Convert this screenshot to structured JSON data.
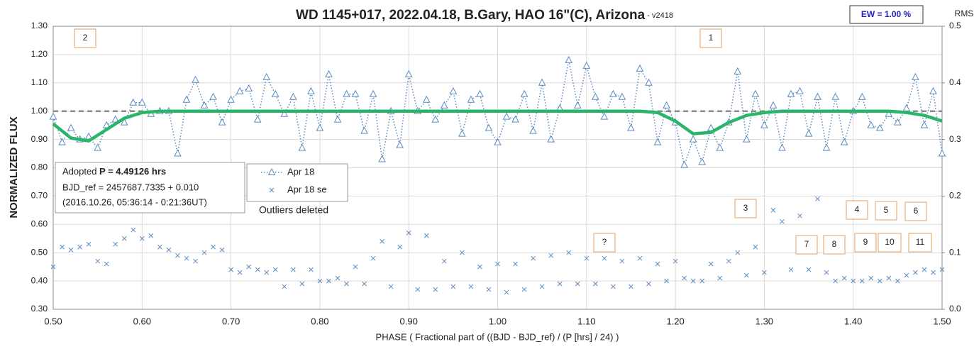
{
  "chart_data": {
    "type": "scatter",
    "title": "WD 1145+017, 2022.04.18, B.Gary, HAO 16\"(C), Arizona",
    "title_suffix": " - v2418",
    "ew_label": "EW = 1.00 %",
    "y2_label": "RMS i",
    "ylabel": "NORMALIZED FLUX",
    "xlabel": "PHASE ( Fractional part of ((BJD - BJD_ref) / (P [hrs] / 24) )",
    "info": [
      "Adopted ",
      "P = 4.49126 hrs",
      "BJD_ref = 2457687.7335 + 0.010",
      "(2016.10.26, 05:36:14 - 0:21:36UT)"
    ],
    "note": "Outliers deleted",
    "annotations": [
      "2",
      "1",
      "3",
      "4",
      "5",
      "6",
      "?",
      "7",
      "8",
      "9",
      "10",
      "11"
    ],
    "hline": 1,
    "grid": true,
    "xlim": [
      0.5,
      1.5
    ],
    "ylim": [
      0.3,
      1.3
    ],
    "y2lim": [
      0,
      0.5
    ],
    "xticks": [
      {
        "value": 0.5,
        "label": "0.50"
      },
      {
        "value": 0.6,
        "label": "0.60"
      },
      {
        "value": 0.7,
        "label": "0.70"
      },
      {
        "value": 0.8,
        "label": "0.80"
      },
      {
        "value": 0.9,
        "label": "0.90"
      },
      {
        "value": 1,
        "label": "1.00"
      },
      {
        "value": 1.1,
        "label": "1.10"
      },
      {
        "value": 1.2,
        "label": "1.20"
      },
      {
        "value": 1.3,
        "label": "1.30"
      },
      {
        "value": 1.4,
        "label": "1.40"
      },
      {
        "value": 1.5,
        "label": "1.50"
      }
    ],
    "yticks": [
      {
        "value": 0.3,
        "label": "0.30"
      },
      {
        "value": 0.4,
        "label": "0.40"
      },
      {
        "value": 0.5,
        "label": "0.50"
      },
      {
        "value": 0.6,
        "label": "0.60"
      },
      {
        "value": 0.7,
        "label": "0.70"
      },
      {
        "value": 0.8,
        "label": "0.80"
      },
      {
        "value": 0.9,
        "label": "0.90"
      },
      {
        "value": 1,
        "label": "1.00"
      },
      {
        "value": 1.1,
        "label": "1.10"
      },
      {
        "value": 1.2,
        "label": "1.20"
      },
      {
        "value": 1.3,
        "label": "1.30"
      }
    ],
    "y2ticks": [
      {
        "value": 0,
        "label": "0.0"
      },
      0.1,
      0.2,
      0.3,
      0.4,
      0.5
    ],
    "x": [
      0.5,
      0.51,
      0.52,
      0.53,
      0.54,
      0.55,
      0.56,
      0.57,
      0.58,
      0.59,
      0.6,
      0.61,
      0.62,
      0.63,
      0.64,
      0.65,
      0.66,
      0.67,
      0.68,
      0.69,
      0.7,
      0.71,
      0.72,
      0.73,
      0.74,
      0.75,
      0.76,
      0.77,
      0.78,
      0.79,
      0.8,
      0.81,
      0.82,
      0.83,
      0.84,
      0.85,
      0.86,
      0.87,
      0.88,
      0.89,
      0.9,
      0.91,
      0.92,
      0.93,
      0.94,
      0.95,
      0.96,
      0.97,
      0.98,
      0.99,
      1,
      1.01,
      1.02,
      1.03,
      1.04,
      1.05,
      1.06,
      1.07,
      1.08,
      1.09,
      1.1,
      1.11,
      1.12,
      1.13,
      1.14,
      1.15,
      1.16,
      1.17,
      1.18,
      1.19,
      1.2,
      1.21,
      1.22,
      1.23,
      1.24,
      1.25,
      1.26,
      1.27,
      1.28,
      1.29,
      1.3,
      1.31,
      1.32,
      1.33,
      1.34,
      1.35,
      1.36,
      1.37,
      1.38,
      1.39,
      1.4,
      1.41,
      1.42,
      1.43,
      1.44,
      1.45,
      1.46,
      1.47,
      1.48,
      1.49,
      1.5
    ],
    "series": [
      {
        "name": "Apr 18",
        "color": "#5b8bbf",
        "marker": "triangle",
        "values": [
          0.98,
          0.89,
          0.94,
          0.9,
          0.91,
          0.87,
          0.95,
          0.97,
          0.96,
          1.03,
          1.03,
          0.99,
          1,
          1,
          0.85,
          1.04,
          1.11,
          1.02,
          1.05,
          0.96,
          1.04,
          1.07,
          1.08,
          0.97,
          1.12,
          1.06,
          0.99,
          1.05,
          0.87,
          1.07,
          0.94,
          1.13,
          0.97,
          1.06,
          1.06,
          0.93,
          1.06,
          0.83,
          1,
          0.88,
          1.13,
          1,
          1.04,
          0.97,
          1.02,
          1.07,
          0.92,
          1.04,
          1.06,
          0.94,
          0.89,
          0.98,
          0.97,
          1.06,
          0.93,
          1.1,
          0.9,
          1.01,
          1.18,
          1.02,
          1.16,
          1.05,
          0.98,
          1.06,
          1.05,
          0.94,
          1.15,
          1.1,
          0.89,
          1.02,
          0.96,
          0.81,
          0.9,
          0.82,
          0.94,
          0.87,
          0.96,
          1.14,
          0.9,
          1.06,
          0.95,
          1.02,
          0.87,
          1.06,
          1.07,
          0.92,
          1.05,
          0.87,
          1.05,
          0.89,
          1,
          1.05,
          0.95,
          0.94,
          0.99,
          0.96,
          1.01,
          1.12,
          0.95,
          1.07,
          0.85
        ]
      },
      {
        "name": "Apr 18 se",
        "color": "#5b8bbf",
        "marker": "cross",
        "axis": "y2",
        "values": [
          0.075,
          0.11,
          0.105,
          0.11,
          0.115,
          0.085,
          0.08,
          0.115,
          0.125,
          0.14,
          0.125,
          0.13,
          0.11,
          0.105,
          0.095,
          0.09,
          0.085,
          0.1,
          0.11,
          0.105,
          0.07,
          0.065,
          0.075,
          0.07,
          0.065,
          0.07,
          0.04,
          0.07,
          0.045,
          0.07,
          0.05,
          0.05,
          0.055,
          0.045,
          0.075,
          0.045,
          0.09,
          0.12,
          0.04,
          0.11,
          0.135,
          0.035,
          0.13,
          0.035,
          0.085,
          0.04,
          0.1,
          0.04,
          0.075,
          0.035,
          0.08,
          0.03,
          0.08,
          0.035,
          0.09,
          0.04,
          0.095,
          0.045,
          0.1,
          0.045,
          0.09,
          0.045,
          0.09,
          0.04,
          0.085,
          0.04,
          0.09,
          0.045,
          0.08,
          0.05,
          0.085,
          0.055,
          0.05,
          0.05,
          0.08,
          0.055,
          0.085,
          0.1,
          0.06,
          0.11,
          0.065,
          0.175,
          0.155,
          0.07,
          0.165,
          0.07,
          0.195,
          0.065,
          0.05,
          0.055,
          0.05,
          0.05,
          0.055,
          0.05,
          0.055,
          0.05,
          0.06,
          0.065,
          0.07,
          0.065,
          0.07
        ]
      },
      {
        "color": "#2ab56a",
        "marker": "line",
        "x": [
          0.5,
          0.52,
          0.54,
          0.56,
          0.58,
          0.6,
          0.62,
          0.64,
          0.66,
          0.68,
          0.7,
          0.72,
          0.74,
          0.76,
          0.78,
          0.8,
          0.82,
          0.84,
          0.86,
          0.88,
          0.9,
          0.92,
          0.94,
          0.96,
          0.98,
          1,
          1.02,
          1.04,
          1.06,
          1.08,
          1.1,
          1.12,
          1.14,
          1.16,
          1.18,
          1.2,
          1.22,
          1.24,
          1.26,
          1.28,
          1.3,
          1.32,
          1.34,
          1.36,
          1.38,
          1.4,
          1.42,
          1.44,
          1.46,
          1.48,
          1.5
        ],
        "values": [
          0.955,
          0.905,
          0.895,
          0.935,
          0.975,
          0.995,
          1,
          1,
          1,
          1,
          1,
          1,
          1,
          1,
          1,
          1,
          1,
          1,
          1,
          1,
          1,
          1,
          1,
          1,
          1,
          1,
          1,
          1,
          1,
          1,
          1,
          1,
          1,
          1,
          0.995,
          0.965,
          0.92,
          0.925,
          0.96,
          0.985,
          0.995,
          1,
          1,
          1,
          1,
          1,
          1,
          1,
          0.995,
          0.985,
          0.965
        ]
      }
    ]
  }
}
